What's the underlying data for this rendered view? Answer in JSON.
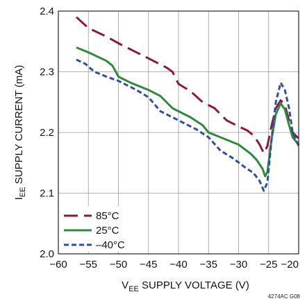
{
  "chart_data": {
    "type": "line",
    "xlabel": {
      "main": "V",
      "sub": "EE",
      "rest": " SUPPLY VOLTAGE (V)"
    },
    "ylabel": {
      "main": "I",
      "sub": "EE",
      "rest": " SUPPLY CURRENT (mA)"
    },
    "xlim": [
      -60,
      -20
    ],
    "ylim": [
      2.0,
      2.4
    ],
    "xticks": [
      "-60",
      "-55",
      "-50",
      "-45",
      "-40",
      "-35",
      "-30",
      "-25",
      "-20"
    ],
    "yticks": [
      "2.0",
      "2.1",
      "2.2",
      "2.3",
      "2.4"
    ],
    "grid": true,
    "legend_position": "bottom-left",
    "series": [
      {
        "name": "85°C",
        "color": "#8b1a3a",
        "dash": "long-dash",
        "points": [
          [
            -57,
            2.39
          ],
          [
            -55,
            2.372
          ],
          [
            -52,
            2.358
          ],
          [
            -50,
            2.347
          ],
          [
            -45,
            2.322
          ],
          [
            -42,
            2.307
          ],
          [
            -41,
            2.3
          ],
          [
            -40,
            2.28
          ],
          [
            -38,
            2.268
          ],
          [
            -36,
            2.25
          ],
          [
            -34,
            2.24
          ],
          [
            -32,
            2.22
          ],
          [
            -30,
            2.21
          ],
          [
            -28.5,
            2.203
          ],
          [
            -27.5,
            2.195
          ],
          [
            -26.5,
            2.18
          ],
          [
            -25.8,
            2.166
          ],
          [
            -25.2,
            2.178
          ],
          [
            -24.5,
            2.212
          ],
          [
            -23.8,
            2.24
          ],
          [
            -23,
            2.253
          ],
          [
            -22.3,
            2.245
          ],
          [
            -21.6,
            2.22
          ],
          [
            -21,
            2.2
          ],
          [
            -20,
            2.19
          ]
        ]
      },
      {
        "name": "25°C",
        "color": "#2e8b3e",
        "dash": "solid",
        "points": [
          [
            -57,
            2.34
          ],
          [
            -55,
            2.332
          ],
          [
            -52,
            2.318
          ],
          [
            -51,
            2.31
          ],
          [
            -50,
            2.292
          ],
          [
            -48,
            2.282
          ],
          [
            -45,
            2.27
          ],
          [
            -43,
            2.26
          ],
          [
            -41,
            2.24
          ],
          [
            -40,
            2.235
          ],
          [
            -38,
            2.225
          ],
          [
            -36,
            2.212
          ],
          [
            -35,
            2.2
          ],
          [
            -32,
            2.188
          ],
          [
            -30,
            2.18
          ],
          [
            -28,
            2.165
          ],
          [
            -27,
            2.155
          ],
          [
            -26,
            2.14
          ],
          [
            -25.6,
            2.128
          ],
          [
            -25.2,
            2.135
          ],
          [
            -24.5,
            2.19
          ],
          [
            -23.8,
            2.23
          ],
          [
            -23,
            2.248
          ],
          [
            -22.3,
            2.238
          ],
          [
            -21.6,
            2.212
          ],
          [
            -21,
            2.192
          ],
          [
            -20,
            2.18
          ]
        ]
      },
      {
        "name": "–40°C",
        "color": "#2f4f9e",
        "dash": "short-dash",
        "points": [
          [
            -57,
            2.32
          ],
          [
            -55.5,
            2.313
          ],
          [
            -54,
            2.3
          ],
          [
            -52,
            2.292
          ],
          [
            -50,
            2.285
          ],
          [
            -47,
            2.27
          ],
          [
            -45,
            2.258
          ],
          [
            -43,
            2.235
          ],
          [
            -40,
            2.22
          ],
          [
            -37,
            2.205
          ],
          [
            -35,
            2.192
          ],
          [
            -33,
            2.17
          ],
          [
            -31,
            2.158
          ],
          [
            -29,
            2.143
          ],
          [
            -27.5,
            2.133
          ],
          [
            -26.5,
            2.12
          ],
          [
            -25.8,
            2.104
          ],
          [
            -25.2,
            2.118
          ],
          [
            -24.5,
            2.19
          ],
          [
            -23.8,
            2.25
          ],
          [
            -23,
            2.282
          ],
          [
            -22.3,
            2.27
          ],
          [
            -21.6,
            2.24
          ],
          [
            -21,
            2.2
          ],
          [
            -20,
            2.178
          ]
        ]
      }
    ]
  },
  "figure_code": "4274AC G08"
}
